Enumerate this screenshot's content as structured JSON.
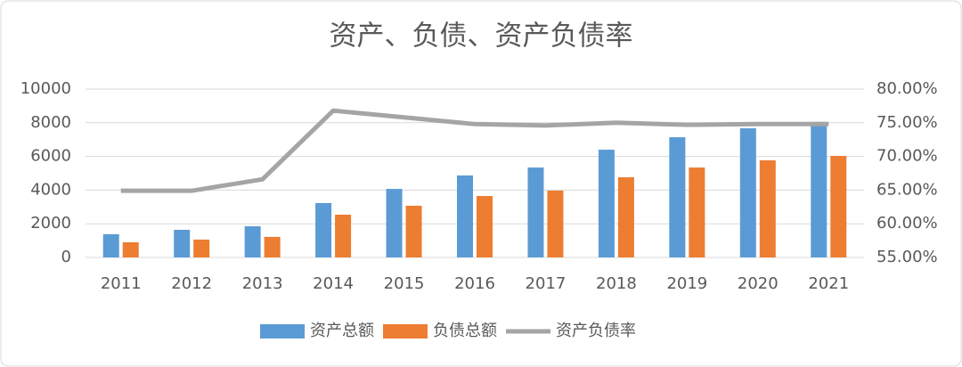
{
  "chart_data": {
    "type": "bar_line",
    "title": "资产、负债、资产负债率",
    "categories": [
      "2011",
      "2012",
      "2013",
      "2014",
      "2015",
      "2016",
      "2017",
      "2018",
      "2019",
      "2020",
      "2021"
    ],
    "series": [
      {
        "name": "资产总额",
        "color": "#5b9bd5",
        "type": "bar",
        "values": [
          1380,
          1640,
          1850,
          3230,
          4070,
          4870,
          5340,
          6400,
          7140,
          7670,
          8050
        ]
      },
      {
        "name": "负债总额",
        "color": "#ed7d31",
        "type": "bar",
        "values": [
          900,
          1060,
          1220,
          2540,
          3070,
          3650,
          3970,
          4760,
          5340,
          5770,
          6030
        ]
      },
      {
        "name": "资产负债率",
        "color": "#a5a5a5",
        "type": "line",
        "axis": "y2",
        "values": [
          64.9,
          64.9,
          66.6,
          76.8,
          75.8,
          74.8,
          74.6,
          75.0,
          74.7,
          74.8,
          74.8
        ]
      }
    ],
    "ylim": [
      0,
      10000
    ],
    "yticks": [
      0,
      2000,
      4000,
      6000,
      8000,
      10000
    ],
    "y2lim": [
      55,
      80
    ],
    "y2ticks": [
      {
        "value": 55,
        "label": "55.00%"
      },
      {
        "value": 60,
        "label": "60.00%"
      },
      {
        "value": 65,
        "label": "65.00%"
      },
      {
        "value": 70,
        "label": "70.00%"
      },
      {
        "value": 75,
        "label": "75.00%"
      },
      {
        "value": 80,
        "label": "80.00%"
      }
    ],
    "grid": true,
    "legend": "bottom"
  }
}
